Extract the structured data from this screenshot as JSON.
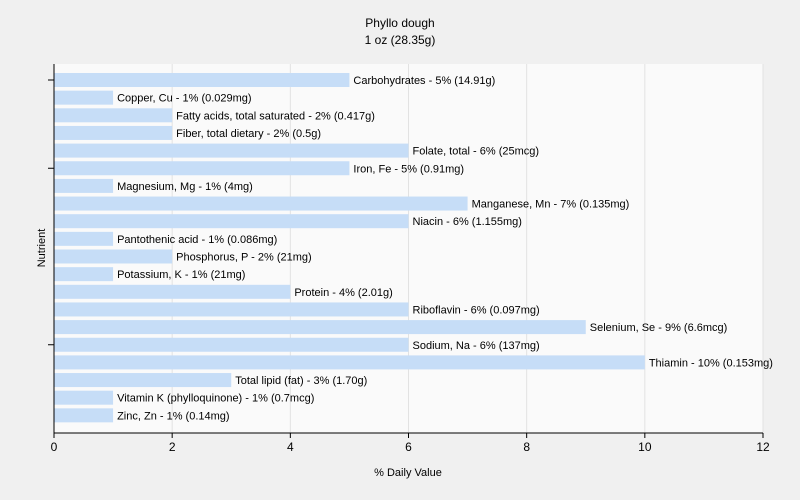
{
  "chart_data": {
    "type": "bar",
    "orientation": "horizontal",
    "title": "Phyllo dough",
    "subtitle": "1 oz (28.35g)",
    "xlabel": "% Daily Value",
    "ylabel": "Nutrient",
    "xlim": [
      0,
      12
    ],
    "xticks": [
      "0",
      "2",
      "4",
      "6",
      "8",
      "10",
      "12"
    ],
    "grid": true,
    "legend": "none",
    "bar_color": "#c6ddf7",
    "plot_background": "#fafafa",
    "page_background": "#f0f0f0",
    "grid_color": "#e2e2e2",
    "categories": [
      "Carbohydrates",
      "Copper, Cu",
      "Fatty acids, total saturated",
      "Fiber, total dietary",
      "Folate, total",
      "Iron, Fe",
      "Magnesium, Mg",
      "Manganese, Mn",
      "Niacin",
      "Pantothenic acid",
      "Phosphorus, P",
      "Potassium, K",
      "Protein",
      "Riboflavin",
      "Selenium, Se",
      "Sodium, Na",
      "Thiamin",
      "Total lipid (fat)",
      "Vitamin K (phylloquinone)",
      "Zinc, Zn"
    ],
    "values": [
      5,
      1,
      2,
      2,
      6,
      5,
      1,
      7,
      6,
      1,
      2,
      1,
      4,
      6,
      9,
      6,
      10,
      3,
      1,
      1
    ],
    "labels": [
      "Carbohydrates - 5% (14.91g)",
      "Copper, Cu - 1% (0.029mg)",
      "Fatty acids, total saturated - 2% (0.417g)",
      "Fiber, total dietary - 2% (0.5g)",
      "Folate, total - 6% (25mcg)",
      "Iron, Fe - 5% (0.91mg)",
      "Magnesium, Mg - 1% (4mg)",
      "Manganese, Mn - 7% (0.135mg)",
      "Niacin - 6% (1.155mg)",
      "Pantothenic acid - 1% (0.086mg)",
      "Phosphorus, P - 2% (21mg)",
      "Potassium, K - 1% (21mg)",
      "Protein - 4% (2.01g)",
      "Riboflavin - 6% (0.097mg)",
      "Selenium, Se - 9% (6.6mcg)",
      "Sodium, Na - 6% (137mg)",
      "Thiamin - 10% (0.153mg)",
      "Total lipid (fat) - 3% (1.70g)",
      "Vitamin K (phylloquinone) - 1% (0.7mcg)",
      "Zinc, Zn - 1% (0.14mg)"
    ]
  }
}
